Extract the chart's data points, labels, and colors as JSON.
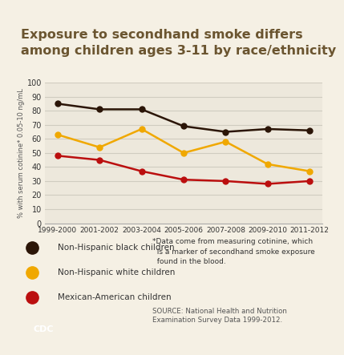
{
  "title_line1": "Exposure to secondhand smoke differs",
  "title_line2": "among children ages 3-11 by race/ethnicity",
  "xlabel_labels": [
    "1999-2000",
    "2001-2002",
    "2003-2004",
    "2005-2006",
    "2007-2008",
    "2009-2010",
    "2011-2012"
  ],
  "x_values": [
    0,
    1,
    2,
    3,
    4,
    5,
    6
  ],
  "ylabel": "% with serum cotinine* 0.05-10 ng/mL",
  "ylim": [
    0,
    100
  ],
  "yticks": [
    0,
    10,
    20,
    30,
    40,
    50,
    60,
    70,
    80,
    90,
    100
  ],
  "black_children": [
    85,
    81,
    81,
    69,
    65,
    67,
    66
  ],
  "white_children": [
    63,
    54,
    67,
    50,
    58,
    42,
    37
  ],
  "mexican_children": [
    48,
    45,
    37,
    31,
    30,
    28,
    30
  ],
  "color_black": "#2b1507",
  "color_white": "#f0a800",
  "color_mexican": "#bb0f0f",
  "bg_color": "#f5f0e4",
  "title_bg": "#d4cfc0",
  "title_color": "#6b5530",
  "legend_black": "Non-Hispanic black children",
  "legend_white": "Non-Hispanic white children",
  "legend_mexican": "Mexican-American children",
  "footnote": "*Data come from measuring cotinine, which\n  is a marker of secondhand smoke exposure\n  found in the blood.",
  "source": "SOURCE: National Health and Nutrition\nExamination Survey Data 1999-2012.",
  "grid_color": "#d0ccc0",
  "axis_color": "#aaaaaa"
}
